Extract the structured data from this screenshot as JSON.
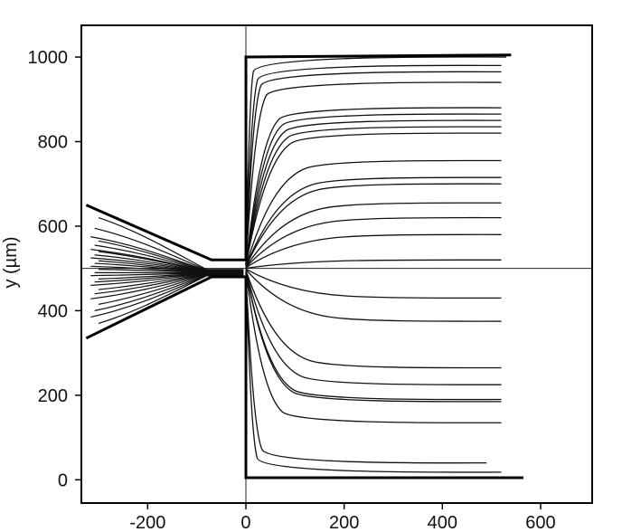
{
  "chart_data": {
    "type": "line",
    "title": "",
    "xlabel": "",
    "ylabel": "y (µm)",
    "xlim": [
      -335,
      705
    ],
    "ylim": [
      -55,
      1075
    ],
    "xticks": [
      -200,
      0,
      200,
      400,
      600
    ],
    "yticks": [
      0,
      200,
      400,
      600,
      800,
      1000
    ],
    "grid": false,
    "reference_lines": {
      "x": 0,
      "y": 500
    },
    "boundary": [
      [
        [
          -325,
          650
        ],
        [
          -70,
          520
        ],
        [
          0,
          520
        ],
        [
          0,
          1000
        ],
        [
          540,
          1005
        ]
      ],
      [
        [
          -325,
          335
        ],
        [
          -70,
          480
        ],
        [
          0,
          480
        ],
        [
          0,
          5
        ],
        [
          565,
          5
        ]
      ]
    ],
    "converging_inlet_ends": [
      620,
      595,
      575,
      565,
      555,
      545,
      540,
      532,
      525,
      518,
      512,
      505,
      498,
      490,
      483,
      475,
      468,
      460,
      450,
      440,
      428,
      415,
      400,
      385,
      370
    ],
    "outlet_ends": [
      [
        530,
        1000
      ],
      [
        520,
        980
      ],
      [
        520,
        965
      ],
      [
        520,
        940
      ],
      [
        520,
        880
      ],
      [
        520,
        865
      ],
      [
        520,
        850
      ],
      [
        520,
        835
      ],
      [
        520,
        820
      ],
      [
        520,
        755
      ],
      [
        520,
        715
      ],
      [
        520,
        700
      ],
      [
        520,
        655
      ],
      [
        520,
        620
      ],
      [
        520,
        580
      ],
      [
        520,
        520
      ],
      [
        520,
        430
      ],
      [
        520,
        375
      ],
      [
        520,
        265
      ],
      [
        520,
        225
      ],
      [
        520,
        190
      ],
      [
        520,
        185
      ],
      [
        520,
        135
      ],
      [
        490,
        40
      ],
      [
        520,
        18
      ]
    ]
  }
}
